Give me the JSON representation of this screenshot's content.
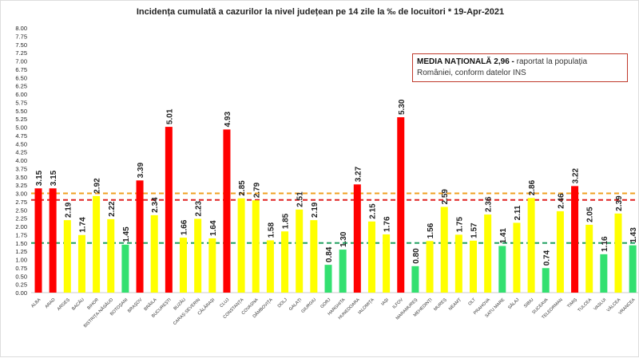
{
  "chart_data": {
    "type": "bar",
    "title": "Incidența cumulată a cazurilor la nivel județean pe 14 zile la ‰ de locuitori *  19-Apr-2021",
    "xlabel": "",
    "ylabel": "",
    "ylim": [
      0,
      8
    ],
    "ytick_step": 0.25,
    "grid": false,
    "categories": [
      "ALBA",
      "ARAD",
      "ARGEȘ",
      "BACĂU",
      "BIHOR",
      "BISTRIȚA-NĂSĂUD",
      "BOTOȘANI",
      "BRAȘOV",
      "BRĂILA",
      "BUCUREȘTI",
      "BUZĂU",
      "CARAȘ-SEVERIN",
      "CĂLĂRAȘI",
      "CLUJ",
      "CONSTANȚA",
      "COVASNA",
      "DÂMBOVIȚA",
      "DOLJ",
      "GALAȚI",
      "GIURGIU",
      "GORJ",
      "HARGHITA",
      "HUNEDOARA",
      "IALOMIȚA",
      "IAȘI",
      "ILFOV",
      "MARAMUREȘ",
      "MEHEDINȚI",
      "MUREȘ",
      "NEAMȚ",
      "OLT",
      "PRAHOVA",
      "SATU MARE",
      "SĂLAJ",
      "SIBIU",
      "SUCEAVA",
      "TELEORMAN",
      "TIMIȘ",
      "TULCEA",
      "VASLUI",
      "VÂLCEA",
      "VRANCEA"
    ],
    "values": [
      3.15,
      3.15,
      2.19,
      1.74,
      2.92,
      2.22,
      1.45,
      3.39,
      2.34,
      5.01,
      1.66,
      2.23,
      1.64,
      4.93,
      2.85,
      2.79,
      1.58,
      1.85,
      2.51,
      2.19,
      0.84,
      1.3,
      3.27,
      2.15,
      1.76,
      5.3,
      0.8,
      1.56,
      2.59,
      1.75,
      1.57,
      2.36,
      1.41,
      2.11,
      2.86,
      0.74,
      2.46,
      3.22,
      2.05,
      1.16,
      2.39,
      1.43
    ],
    "reference_lines": [
      {
        "value": 3.0,
        "color": "#f0a020"
      },
      {
        "value": 2.8,
        "color": "#e02020"
      },
      {
        "value": 1.5,
        "color": "#20a060"
      }
    ],
    "colors": {
      "high": "#ff0000",
      "medium": "#ffff00",
      "low": "#33e070"
    },
    "annotation": {
      "bold": "MEDIA NAȚIONALĂ  2,96 -",
      "text": " raportat la populația României, conform datelor INS"
    }
  }
}
